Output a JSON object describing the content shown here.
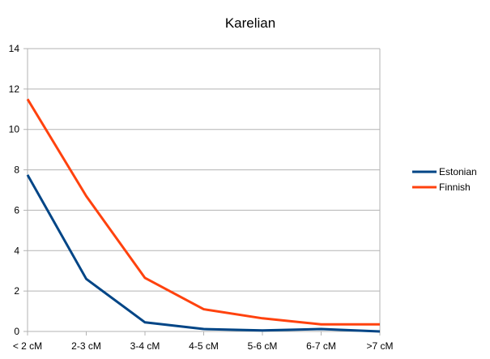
{
  "chart_data": {
    "type": "line",
    "title": "Karelian",
    "xlabel": "",
    "ylabel": "",
    "categories": [
      "< 2 cM",
      "2-3 cM",
      "3-4 cM",
      "4-5 cM",
      "5-6 cM",
      "6-7 cM",
      ">7 cM"
    ],
    "ylim": [
      0,
      14
    ],
    "yticks": [
      0,
      2,
      4,
      6,
      8,
      10,
      12,
      14
    ],
    "grid": true,
    "legend_position": "right",
    "series": [
      {
        "name": "Estonian",
        "color": "#004586",
        "values": [
          7.75,
          2.6,
          0.45,
          0.12,
          0.05,
          0.12,
          0.0
        ]
      },
      {
        "name": "Finnish",
        "color": "#ff420e",
        "values": [
          11.5,
          6.7,
          2.65,
          1.1,
          0.65,
          0.35,
          0.35
        ]
      }
    ]
  }
}
